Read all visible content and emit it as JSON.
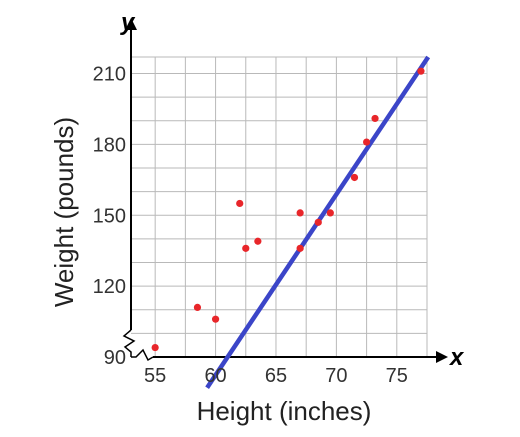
{
  "chart_data": {
    "type": "scatter",
    "title": "",
    "xlabel": "Height (inches)",
    "ylabel": "Weight (pounds)",
    "x_axis_letter": "x",
    "y_axis_letter": "y",
    "xlim": [
      53,
      77.5
    ],
    "ylim": [
      90,
      217
    ],
    "axis_break": true,
    "x_ticks": [
      55,
      60,
      65,
      70,
      75
    ],
    "y_ticks": [
      90,
      120,
      150,
      180,
      210
    ],
    "grid": true,
    "series": [
      {
        "points": [
          {
            "x": 55,
            "y": 94
          },
          {
            "x": 58.5,
            "y": 111
          },
          {
            "x": 60,
            "y": 106
          },
          {
            "x": 62,
            "y": 155
          },
          {
            "x": 62.5,
            "y": 136
          },
          {
            "x": 63.5,
            "y": 139
          },
          {
            "x": 67,
            "y": 151
          },
          {
            "x": 67,
            "y": 136
          },
          {
            "x": 68.5,
            "y": 147
          },
          {
            "x": 69.5,
            "y": 151
          },
          {
            "x": 71.5,
            "y": 166
          },
          {
            "x": 72.5,
            "y": 181
          },
          {
            "x": 73.2,
            "y": 191
          },
          {
            "x": 77,
            "y": 211
          }
        ]
      }
    ],
    "trend_line": {
      "from": {
        "x": 59.3,
        "y": 77
      },
      "to": {
        "x": 77.6,
        "y": 217
      }
    },
    "colors": {
      "points": "#e8262a",
      "line": "#3b45c8",
      "grid": "#b9b9b9",
      "axis": "#000000"
    }
  }
}
